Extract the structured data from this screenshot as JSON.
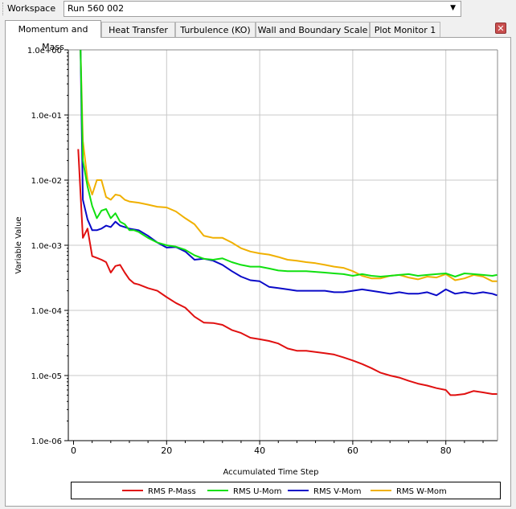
{
  "workspace": {
    "label": "Workspace",
    "selected": "Run 560 002"
  },
  "tabs": [
    {
      "label": "Momentum and Mass",
      "active": true
    },
    {
      "label": "Heat Transfer",
      "active": false
    },
    {
      "label": "Turbulence (KO)",
      "active": false
    },
    {
      "label": "Wall and Boundary Scale",
      "active": false
    },
    {
      "label": "Plot Monitor 1",
      "active": false
    }
  ],
  "close_label": "✕",
  "chart_data": {
    "type": "line",
    "title": "",
    "xlabel": "Accumulated Time Step",
    "ylabel": "Variable Value",
    "yscale": "log",
    "xlim": [
      0,
      91
    ],
    "ylim": [
      1e-06,
      1
    ],
    "xticks": [
      0,
      20,
      40,
      60,
      80
    ],
    "xtick_labels": [
      "0",
      "20",
      "40",
      "60",
      "80"
    ],
    "yticks": [
      1,
      0.1,
      0.01,
      0.001,
      0.0001,
      1e-05,
      1e-06
    ],
    "ytick_labels": [
      "1.0e+00",
      "1.0e-01",
      "1.0e-02",
      "1.0e-03",
      "1.0e-04",
      "1.0e-05",
      "1.0e-06"
    ],
    "grid": true,
    "legend_position": "bottom",
    "series": [
      {
        "name": "RMS P-Mass",
        "color": "#e01010",
        "x": [
          1,
          2,
          3,
          4,
          5,
          6,
          7,
          8,
          9,
          10,
          11,
          12,
          13,
          14,
          16,
          18,
          20,
          22,
          24,
          26,
          28,
          30,
          32,
          34,
          36,
          38,
          40,
          42,
          44,
          46,
          48,
          50,
          52,
          54,
          56,
          58,
          60,
          62,
          64,
          66,
          68,
          70,
          72,
          74,
          76,
          78,
          80,
          81,
          82,
          84,
          86,
          88,
          90,
          91
        ],
        "y": [
          0.03,
          0.0013,
          0.0018,
          0.00068,
          0.00064,
          0.0006,
          0.00055,
          0.00038,
          0.00048,
          0.0005,
          0.00038,
          0.0003,
          0.00026,
          0.00025,
          0.00022,
          0.0002,
          0.00016,
          0.00013,
          0.00011,
          8e-05,
          6.5e-05,
          6.4e-05,
          6e-05,
          5e-05,
          4.5e-05,
          3.8e-05,
          3.6e-05,
          3.4e-05,
          3.1e-05,
          2.6e-05,
          2.4e-05,
          2.4e-05,
          2.3e-05,
          2.2e-05,
          2.1e-05,
          1.9e-05,
          1.7e-05,
          1.5e-05,
          1.3e-05,
          1.1e-05,
          1e-05,
          9.3e-06,
          8.3e-06,
          7.5e-06,
          7e-06,
          6.4e-06,
          6e-06,
          5e-06,
          5e-06,
          5.2e-06,
          5.8e-06,
          5.5e-06,
          5.2e-06,
          5.2e-06
        ]
      },
      {
        "name": "RMS U-Mom",
        "color": "#10e010",
        "x": [
          1.5,
          2,
          3,
          4,
          5,
          6,
          7,
          8,
          9,
          10,
          11,
          12,
          13,
          14,
          16,
          18,
          20,
          22,
          24,
          26,
          28,
          30,
          32,
          34,
          36,
          38,
          40,
          42,
          44,
          46,
          48,
          50,
          52,
          54,
          56,
          58,
          60,
          62,
          64,
          66,
          68,
          70,
          72,
          74,
          76,
          78,
          80,
          82,
          84,
          86,
          88,
          90,
          91
        ],
        "y": [
          1.0,
          0.02,
          0.008,
          0.004,
          0.0026,
          0.0034,
          0.0036,
          0.0026,
          0.0031,
          0.0023,
          0.0021,
          0.0017,
          0.0017,
          0.0016,
          0.0013,
          0.0011,
          0.001,
          0.00095,
          0.00085,
          0.0007,
          0.00062,
          0.0006,
          0.00063,
          0.00055,
          0.0005,
          0.00047,
          0.00047,
          0.00044,
          0.00041,
          0.0004,
          0.0004,
          0.0004,
          0.00039,
          0.00038,
          0.00037,
          0.00036,
          0.00034,
          0.00036,
          0.00034,
          0.00033,
          0.00034,
          0.00035,
          0.00036,
          0.00034,
          0.00035,
          0.00036,
          0.00037,
          0.00033,
          0.00037,
          0.00036,
          0.00035,
          0.00034,
          0.00035
        ]
      },
      {
        "name": "RMS V-Mom",
        "color": "#0a0ac8",
        "x": [
          1.5,
          2,
          3,
          4,
          5,
          6,
          7,
          8,
          9,
          10,
          11,
          12,
          14,
          16,
          18,
          20,
          22,
          24,
          26,
          28,
          30,
          32,
          34,
          36,
          38,
          40,
          42,
          44,
          46,
          48,
          50,
          52,
          54,
          56,
          58,
          60,
          62,
          64,
          66,
          68,
          70,
          72,
          74,
          76,
          78,
          80,
          82,
          84,
          86,
          88,
          90,
          91
        ],
        "y": [
          1.0,
          0.005,
          0.0025,
          0.0017,
          0.0017,
          0.0018,
          0.002,
          0.0019,
          0.0023,
          0.002,
          0.0019,
          0.0018,
          0.0017,
          0.0014,
          0.0011,
          0.00092,
          0.00094,
          0.0008,
          0.0006,
          0.00062,
          0.00058,
          0.0005,
          0.0004,
          0.00033,
          0.00029,
          0.00028,
          0.00023,
          0.00022,
          0.00021,
          0.0002,
          0.0002,
          0.0002,
          0.0002,
          0.00019,
          0.00019,
          0.0002,
          0.00021,
          0.0002,
          0.00019,
          0.00018,
          0.00019,
          0.00018,
          0.00018,
          0.00019,
          0.00017,
          0.00021,
          0.00018,
          0.00019,
          0.00018,
          0.00019,
          0.00018,
          0.00017
        ]
      },
      {
        "name": "RMS W-Mom",
        "color": "#f0b000",
        "x": [
          1.5,
          2,
          3,
          4,
          5,
          6,
          7,
          8,
          9,
          10,
          11,
          12,
          14,
          16,
          18,
          20,
          22,
          24,
          26,
          28,
          30,
          32,
          34,
          36,
          38,
          40,
          42,
          44,
          46,
          48,
          50,
          52,
          54,
          56,
          58,
          60,
          62,
          64,
          66,
          68,
          70,
          72,
          74,
          76,
          78,
          80,
          82,
          84,
          86,
          88,
          90,
          91
        ],
        "y": [
          1.0,
          0.04,
          0.01,
          0.006,
          0.01,
          0.01,
          0.0055,
          0.005,
          0.006,
          0.0058,
          0.005,
          0.0047,
          0.0045,
          0.0042,
          0.0039,
          0.0038,
          0.0033,
          0.0026,
          0.0021,
          0.0014,
          0.0013,
          0.0013,
          0.0011,
          0.0009,
          0.0008,
          0.00075,
          0.00072,
          0.00066,
          0.0006,
          0.00058,
          0.00055,
          0.00053,
          0.0005,
          0.00047,
          0.00045,
          0.0004,
          0.00034,
          0.00031,
          0.00031,
          0.00034,
          0.00035,
          0.00032,
          0.0003,
          0.00033,
          0.00032,
          0.00036,
          0.00029,
          0.00031,
          0.00035,
          0.00033,
          0.00028,
          0.00028
        ]
      }
    ]
  }
}
